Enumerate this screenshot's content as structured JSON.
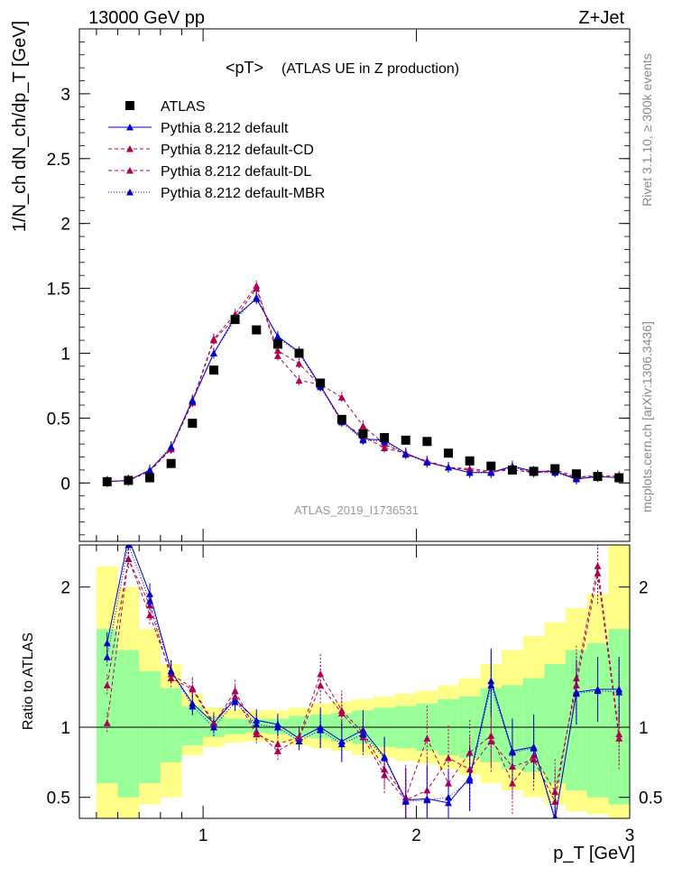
{
  "header": {
    "energy_label": "13000 GeV pp",
    "process_label": "Z+Jet",
    "rivet_label": "Rivet 3.1.10, ≥ 300k events",
    "mcplots_label": "mcplots.cern.ch [arXiv:1306.3436]",
    "analysis_id": "ATLAS_2019_I1736531"
  },
  "colors": {
    "data": "#000000",
    "default": "#0000cc",
    "variant": "#b0004f",
    "band_stat": "#99ff99",
    "band_total": "#ffff88"
  },
  "chart_data": [
    {
      "type": "scatter",
      "title": "<pT>",
      "subtitle": "(ATLAS UE in Z production)",
      "xlabel": "p_T [GeV]",
      "ylabel": "1/N_ch dN_ch/dp_T [GeV]",
      "xlim": [
        0.42,
        3.0
      ],
      "ylim": [
        -0.45,
        3.5
      ],
      "yticks": [
        0,
        0.5,
        1,
        1.5,
        2,
        2.5,
        3
      ],
      "legend_position": "top-left",
      "x": [
        0.55,
        0.65,
        0.75,
        0.85,
        0.95,
        1.05,
        1.15,
        1.25,
        1.35,
        1.45,
        1.55,
        1.65,
        1.75,
        1.85,
        1.95,
        2.05,
        2.15,
        2.25,
        2.35,
        2.45,
        2.55,
        2.65,
        2.75,
        2.85,
        2.95
      ],
      "series": [
        {
          "name": "ATLAS",
          "style": "marker-square",
          "values": [
            0.01,
            0.02,
            0.04,
            0.15,
            0.46,
            0.87,
            1.26,
            1.18,
            1.07,
            1.0,
            0.77,
            0.49,
            0.38,
            0.35,
            0.33,
            0.32,
            0.23,
            0.17,
            0.13,
            0.1,
            0.09,
            0.11,
            0.07,
            0.05,
            0.04
          ]
        },
        {
          "name": "Pythia 8.212 default",
          "style": "solid",
          "values": [
            0.01,
            0.02,
            0.1,
            0.27,
            0.64,
            1.0,
            1.28,
            1.42,
            1.13,
            1.01,
            0.75,
            0.48,
            0.34,
            0.33,
            0.23,
            0.16,
            0.12,
            0.08,
            0.08,
            0.13,
            0.09,
            0.09,
            0.03,
            0.05,
            0.04
          ]
        },
        {
          "name": "Pythia 8.212 default-CD",
          "style": "dashed",
          "values": [
            0.01,
            0.02,
            0.09,
            0.26,
            0.63,
            1.11,
            1.3,
            1.52,
            0.98,
            0.79,
            0.76,
            0.66,
            0.44,
            0.3,
            0.22,
            0.17,
            0.12,
            0.11,
            0.09,
            0.1,
            0.08,
            0.1,
            0.05,
            0.05,
            0.04
          ]
        },
        {
          "name": "Pythia 8.212 default-DL",
          "style": "dashed",
          "values": [
            0.01,
            0.02,
            0.09,
            0.27,
            0.62,
            1.1,
            1.27,
            1.5,
            1.02,
            0.92,
            0.75,
            0.47,
            0.36,
            0.27,
            0.23,
            0.16,
            0.12,
            0.1,
            0.08,
            0.12,
            0.08,
            0.09,
            0.04,
            0.06,
            0.05
          ]
        },
        {
          "name": "Pythia 8.212 default-MBR",
          "style": "dotted",
          "values": [
            0.01,
            0.02,
            0.1,
            0.28,
            0.63,
            1.0,
            1.26,
            1.43,
            1.12,
            1.0,
            0.74,
            0.47,
            0.33,
            0.32,
            0.22,
            0.16,
            0.12,
            0.08,
            0.08,
            0.12,
            0.08,
            0.08,
            0.03,
            0.05,
            0.04
          ]
        }
      ]
    },
    {
      "type": "line",
      "xlabel": "p_T [GeV]",
      "ylabel": "Ratio to ATLAS",
      "xlim": [
        0.42,
        3.0
      ],
      "ylim": [
        0.35,
        2.3
      ],
      "yticks": [
        0.5,
        1,
        2
      ],
      "xticks": [
        1,
        2,
        3
      ],
      "x": [
        0.55,
        0.65,
        0.75,
        0.85,
        0.95,
        1.05,
        1.15,
        1.25,
        1.35,
        1.45,
        1.55,
        1.65,
        1.75,
        1.85,
        1.95,
        2.05,
        2.15,
        2.25,
        2.35,
        2.45,
        2.55,
        2.65,
        2.75,
        2.85,
        2.95
      ],
      "band_stat": [
        [
          0.6,
          1.7
        ],
        [
          0.5,
          1.55
        ],
        [
          0.6,
          1.4
        ],
        [
          0.75,
          1.28
        ],
        [
          0.87,
          1.15
        ],
        [
          0.93,
          1.08
        ],
        [
          0.95,
          1.06
        ],
        [
          0.96,
          1.06
        ],
        [
          0.95,
          1.06
        ],
        [
          0.93,
          1.08
        ],
        [
          0.92,
          1.09
        ],
        [
          0.9,
          1.1
        ],
        [
          0.88,
          1.12
        ],
        [
          0.86,
          1.14
        ],
        [
          0.85,
          1.15
        ],
        [
          0.83,
          1.17
        ],
        [
          0.8,
          1.2
        ],
        [
          0.78,
          1.22
        ],
        [
          0.75,
          1.28
        ],
        [
          0.7,
          1.3
        ],
        [
          0.68,
          1.35
        ],
        [
          0.6,
          1.45
        ],
        [
          0.55,
          1.55
        ],
        [
          0.5,
          1.6
        ],
        [
          0.45,
          1.7
        ]
      ],
      "band_total": [
        [
          0.35,
          2.15
        ],
        [
          0.35,
          2.0
        ],
        [
          0.45,
          1.7
        ],
        [
          0.5,
          1.45
        ],
        [
          0.8,
          1.24
        ],
        [
          0.86,
          1.14
        ],
        [
          0.89,
          1.13
        ],
        [
          0.9,
          1.12
        ],
        [
          0.89,
          1.12
        ],
        [
          0.87,
          1.14
        ],
        [
          0.85,
          1.17
        ],
        [
          0.83,
          1.18
        ],
        [
          0.8,
          1.2
        ],
        [
          0.78,
          1.22
        ],
        [
          0.76,
          1.24
        ],
        [
          0.74,
          1.26
        ],
        [
          0.7,
          1.3
        ],
        [
          0.66,
          1.35
        ],
        [
          0.6,
          1.45
        ],
        [
          0.55,
          1.55
        ],
        [
          0.5,
          1.65
        ],
        [
          0.45,
          1.75
        ],
        [
          0.4,
          1.85
        ],
        [
          0.38,
          1.95
        ],
        [
          0.35,
          2.3
        ]
      ],
      "series": [
        {
          "name": "Pythia 8.212 default",
          "style": "solid",
          "values": [
            1.6,
            2.35,
            1.95,
            1.4,
            1.17,
            1.03,
            1.2,
            1.05,
            1.02,
            0.92,
            1.0,
            0.9,
            0.98,
            0.79,
            0.48,
            0.49,
            0.46,
            0.64,
            1.33,
            0.83,
            0.86,
            0.34,
            1.25,
            1.27,
            1.27
          ]
        },
        {
          "name": "Pythia 8.212 default-CD",
          "style": "dashed",
          "values": [
            1.3,
            2.2,
            1.8,
            1.38,
            1.28,
            1.03,
            1.22,
            0.95,
            0.88,
            0.93,
            1.38,
            1.12,
            0.96,
            0.7,
            0.5,
            0.92,
            0.6,
            0.82,
            0.94,
            0.6,
            0.8,
            0.54,
            1.3,
            2.1,
            0.92
          ]
        },
        {
          "name": "Pythia 8.212 default-DL",
          "style": "dashed",
          "values": [
            1.03,
            2.2,
            1.87,
            1.35,
            1.27,
            1.02,
            1.26,
            0.97,
            0.83,
            0.92,
            1.3,
            1.1,
            0.93,
            0.66,
            0.48,
            0.55,
            0.78,
            0.7,
            0.9,
            0.72,
            0.77,
            0.47,
            1.35,
            2.15,
            0.95
          ]
        },
        {
          "name": "Pythia 8.212 default-MBR",
          "style": "dotted",
          "values": [
            1.5,
            2.3,
            1.9,
            1.4,
            1.15,
            1.0,
            1.18,
            1.02,
            1.0,
            0.9,
            0.98,
            0.88,
            0.95,
            0.78,
            0.47,
            0.48,
            0.5,
            0.62,
            1.3,
            0.82,
            0.85,
            0.36,
            1.24,
            1.26,
            1.25
          ]
        }
      ]
    }
  ]
}
